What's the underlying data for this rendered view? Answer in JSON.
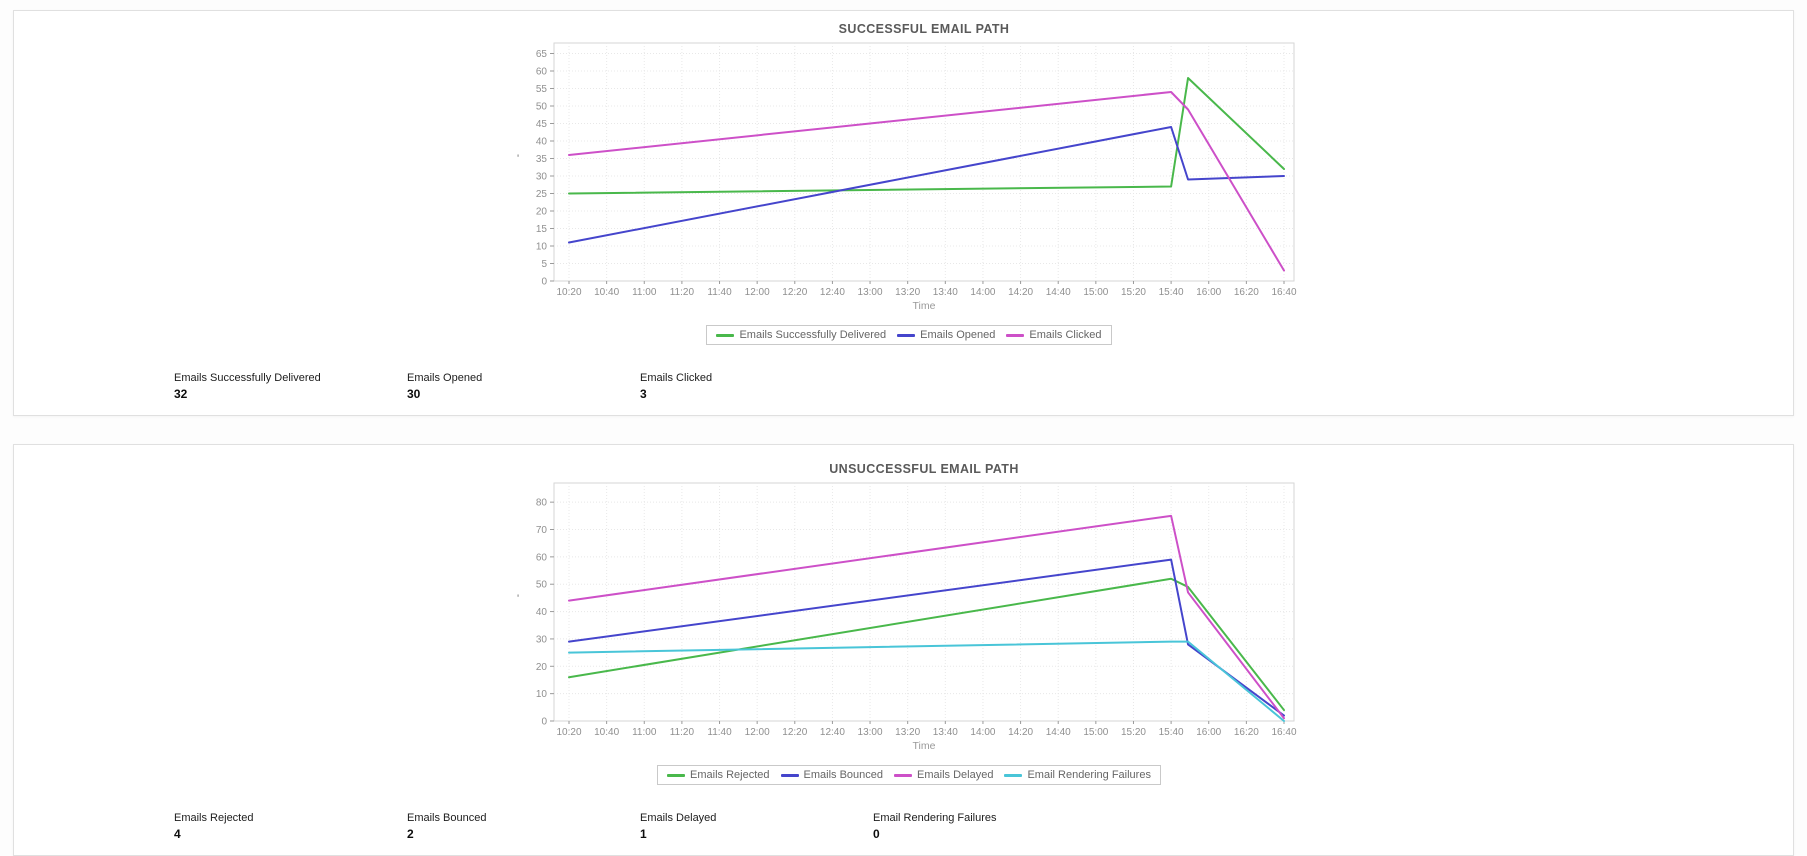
{
  "page": {
    "background": "#ffffff",
    "panel_border": "#e0e0e0"
  },
  "styles": {
    "title_color": "#5a5a5a",
    "axis_text_color": "#8f8f8f",
    "axis_title_color": "#999999",
    "grid_color": "#e8e8e8",
    "plot_border_color": "#d6d6d6",
    "legend_text_color": "#666666",
    "legend_border_color": "#c9c9c9"
  },
  "panels": [
    {
      "name": "successful-email-path",
      "stats": [
        {
          "label": "Emails Successfully Delivered",
          "value": "32"
        },
        {
          "label": "Emails Opened",
          "value": "30"
        },
        {
          "label": "Emails Clicked",
          "value": "3"
        }
      ]
    },
    {
      "name": "unsuccessful-email-path",
      "stats": [
        {
          "label": "Emails Rejected",
          "value": "4"
        },
        {
          "label": "Emails Bounced",
          "value": "2"
        },
        {
          "label": "Emails Delayed",
          "value": "1"
        },
        {
          "label": "Email Rendering Failures",
          "value": "0"
        }
      ]
    }
  ],
  "chart_data": [
    {
      "type": "line",
      "title": "SUCCESSFUL EMAIL PATH",
      "xlabel": "Time",
      "ylabel": "'",
      "grid": true,
      "legend_position": "bottom",
      "x": [
        "10:20",
        "15:40",
        "15:49",
        "16:40"
      ],
      "x_ticks": [
        "10:20",
        "10:40",
        "11:00",
        "11:20",
        "11:40",
        "12:00",
        "12:20",
        "12:40",
        "13:00",
        "13:20",
        "13:40",
        "14:00",
        "14:20",
        "14:40",
        "15:00",
        "15:20",
        "15:40",
        "16:00",
        "16:20",
        "16:40"
      ],
      "y_ticks": [
        0,
        5,
        10,
        15,
        20,
        25,
        30,
        35,
        40,
        45,
        50,
        55,
        60,
        65
      ],
      "ylim": [
        0,
        68
      ],
      "series": [
        {
          "name": "Emails Successfully Delivered",
          "color": "#49b84b",
          "values": [
            25,
            27,
            58,
            32
          ]
        },
        {
          "name": "Emails Opened",
          "color": "#4545cc",
          "values": [
            11,
            44,
            29,
            30
          ]
        },
        {
          "name": "Emails Clicked",
          "color": "#cd50c8",
          "values": [
            36,
            54,
            49,
            3
          ]
        }
      ]
    },
    {
      "type": "line",
      "title": "UNSUCCESSFUL EMAIL PATH",
      "xlabel": "Time",
      "ylabel": "'",
      "grid": true,
      "legend_position": "bottom",
      "x": [
        "10:20",
        "15:40",
        "15:49",
        "16:40"
      ],
      "x_ticks": [
        "10:20",
        "10:40",
        "11:00",
        "11:20",
        "11:40",
        "12:00",
        "12:20",
        "12:40",
        "13:00",
        "13:20",
        "13:40",
        "14:00",
        "14:20",
        "14:40",
        "15:00",
        "15:20",
        "15:40",
        "16:00",
        "16:20",
        "16:40"
      ],
      "y_ticks": [
        0,
        10,
        20,
        30,
        40,
        50,
        60,
        70,
        80
      ],
      "ylim": [
        0,
        87
      ],
      "series": [
        {
          "name": "Emails Rejected",
          "color": "#49b84b",
          "values": [
            16,
            52,
            49,
            4
          ]
        },
        {
          "name": "Emails Bounced",
          "color": "#4545cc",
          "values": [
            29,
            59,
            28,
            2
          ]
        },
        {
          "name": "Emails Delayed",
          "color": "#cd50c8",
          "values": [
            44,
            75,
            47,
            1
          ]
        },
        {
          "name": "Email Rendering Failures",
          "color": "#49c5d8",
          "values": [
            25,
            29,
            29,
            0
          ]
        }
      ]
    }
  ]
}
